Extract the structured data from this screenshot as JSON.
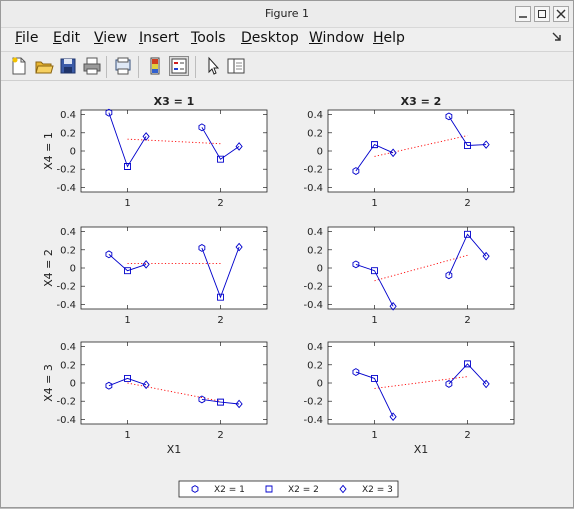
{
  "window": {
    "title": "Figure 1"
  },
  "menu": [
    {
      "label": "File",
      "underline": "F",
      "rest": "ile"
    },
    {
      "label": "Edit",
      "underline": "E",
      "rest": "dit"
    },
    {
      "label": "View",
      "underline": "V",
      "rest": "iew"
    },
    {
      "label": "Insert",
      "underline": "I",
      "rest": "nsert"
    },
    {
      "label": "Tools",
      "underline": "T",
      "rest": "ools"
    },
    {
      "label": "Desktop",
      "underline": "D",
      "rest": "esktop"
    },
    {
      "label": "Window",
      "underline": "W",
      "rest": "indow"
    },
    {
      "label": "Help",
      "underline": "H",
      "rest": "elp"
    }
  ],
  "toolbar": [
    "new-figure-icon",
    "open-file-icon",
    "save-icon",
    "print-icon",
    "print-preview-icon",
    "colorbar-icon",
    "legend-icon",
    "pointer-icon",
    "property-editor-icon"
  ],
  "colors": {
    "series": "#0000cc",
    "trend": "#ff0000",
    "axes_bg": "#ffffff",
    "figure_bg": "#efefef"
  },
  "chart_data": {
    "type": "line",
    "layout": {
      "rows": 3,
      "cols": 2
    },
    "ylim": [
      -0.45,
      0.45
    ],
    "yticks": [
      "0.4",
      "0.2",
      "0",
      "-0.2",
      "-0.4"
    ],
    "ytick_values": [
      0.4,
      0.2,
      0,
      -0.2,
      -0.4
    ],
    "xlim": [
      0.5,
      2.5
    ],
    "xticks": [
      "1",
      "2"
    ],
    "xtick_values": [
      1,
      2
    ],
    "xlabel": "X1",
    "col_titles": [
      "X3 = 1",
      "X3 = 2"
    ],
    "row_labels": [
      "X4 = 1",
      "X4 = 2",
      "X4 = 3"
    ],
    "series_x_offsets": [
      -0.2,
      0,
      0.2
    ],
    "panels": [
      {
        "title": "X3 = 1",
        "ylabel": "X4 = 1",
        "groups": [
          {
            "x": 1,
            "y": [
              0.42,
              -0.17,
              0.16
            ]
          },
          {
            "x": 2,
            "y": [
              0.26,
              -0.09,
              0.05
            ]
          }
        ],
        "trend": [
          0.13,
          0.08
        ]
      },
      {
        "title": "X3 = 2",
        "ylabel": "",
        "groups": [
          {
            "x": 1,
            "y": [
              -0.22,
              0.07,
              -0.02
            ]
          },
          {
            "x": 2,
            "y": [
              0.38,
              0.06,
              0.07
            ]
          }
        ],
        "trend": [
          -0.06,
          0.17
        ]
      },
      {
        "title": "",
        "ylabel": "X4 = 2",
        "groups": [
          {
            "x": 1,
            "y": [
              0.15,
              -0.03,
              0.04
            ]
          },
          {
            "x": 2,
            "y": [
              0.22,
              -0.32,
              0.23
            ]
          }
        ],
        "trend": [
          0.05,
          0.05
        ]
      },
      {
        "title": "",
        "ylabel": "",
        "groups": [
          {
            "x": 1,
            "y": [
              0.04,
              -0.03,
              -0.42
            ]
          },
          {
            "x": 2,
            "y": [
              -0.08,
              0.37,
              0.13
            ]
          }
        ],
        "trend": [
          -0.14,
          0.14
        ]
      },
      {
        "title": "",
        "ylabel": "X4 = 3",
        "groups": [
          {
            "x": 1,
            "y": [
              -0.03,
              0.05,
              -0.02
            ]
          },
          {
            "x": 2,
            "y": [
              -0.18,
              -0.21,
              -0.23
            ]
          }
        ],
        "trend": [
          0.0,
          -0.2
        ]
      },
      {
        "title": "",
        "ylabel": "",
        "groups": [
          {
            "x": 1,
            "y": [
              0.12,
              0.05,
              -0.37
            ]
          },
          {
            "x": 2,
            "y": [
              -0.01,
              0.21,
              -0.01
            ]
          }
        ],
        "trend": [
          -0.06,
          0.07
        ]
      }
    ],
    "series": [
      {
        "name": "X2 = 1",
        "marker": "hexagon"
      },
      {
        "name": "X2 = 2",
        "marker": "square"
      },
      {
        "name": "X2 = 3",
        "marker": "diamond"
      }
    ],
    "legend": "bottom-center"
  }
}
